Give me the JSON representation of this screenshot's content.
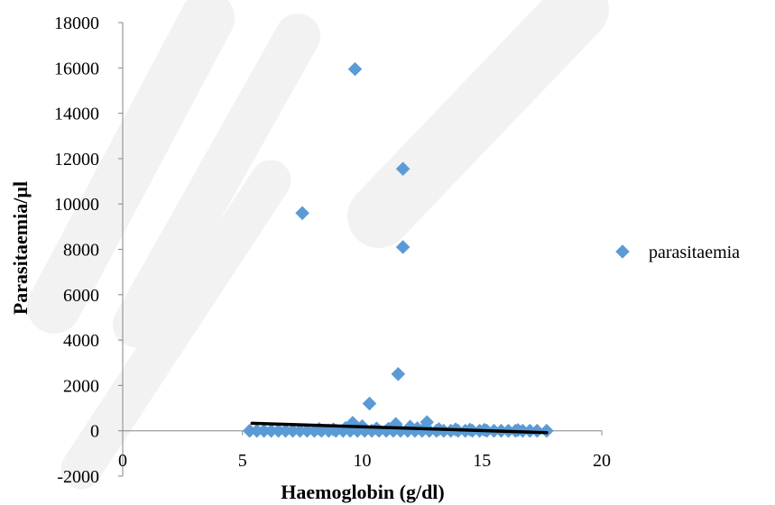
{
  "chart_data": {
    "type": "scatter",
    "title": "",
    "xlabel": "Haemoglobin (g/dl)",
    "ylabel": "Parasitaemia/µl",
    "xlim": [
      0,
      20
    ],
    "ylim": [
      -2000,
      18000
    ],
    "x_ticks": [
      "0",
      "5",
      "10",
      "15",
      "20"
    ],
    "y_ticks": [
      "-2000",
      "0",
      "2000",
      "4000",
      "6000",
      "8000",
      "10000",
      "12000",
      "14000",
      "16000",
      "18000"
    ],
    "grid": false,
    "legend_position": "right",
    "series": [
      {
        "name": "parasitaemia",
        "marker": "diamond",
        "color": "#5B9BD5",
        "points": [
          [
            9.7,
            15950
          ],
          [
            11.7,
            11550
          ],
          [
            7.5,
            9600
          ],
          [
            11.7,
            8100
          ],
          [
            11.5,
            2500
          ],
          [
            10.3,
            1200
          ],
          [
            9.6,
            350
          ],
          [
            11.4,
            300
          ],
          [
            12.7,
            380
          ],
          [
            10.0,
            200
          ],
          [
            12.0,
            180
          ],
          [
            5.3,
            0
          ],
          [
            5.6,
            0
          ],
          [
            5.9,
            0
          ],
          [
            6.2,
            0
          ],
          [
            6.5,
            0
          ],
          [
            6.8,
            0
          ],
          [
            7.1,
            0
          ],
          [
            7.4,
            0
          ],
          [
            7.7,
            0
          ],
          [
            8.0,
            0
          ],
          [
            8.3,
            0
          ],
          [
            8.6,
            0
          ],
          [
            8.9,
            0
          ],
          [
            9.2,
            0
          ],
          [
            9.5,
            0
          ],
          [
            9.8,
            0
          ],
          [
            10.1,
            0
          ],
          [
            10.4,
            0
          ],
          [
            10.7,
            0
          ],
          [
            11.0,
            0
          ],
          [
            11.3,
            0
          ],
          [
            11.6,
            0
          ],
          [
            11.9,
            0
          ],
          [
            12.2,
            0
          ],
          [
            12.5,
            0
          ],
          [
            12.8,
            0
          ],
          [
            13.1,
            0
          ],
          [
            13.4,
            0
          ],
          [
            13.7,
            0
          ],
          [
            14.0,
            0
          ],
          [
            14.3,
            0
          ],
          [
            14.6,
            0
          ],
          [
            14.9,
            0
          ],
          [
            15.2,
            0
          ],
          [
            15.5,
            0
          ],
          [
            15.8,
            0
          ],
          [
            16.1,
            0
          ],
          [
            16.4,
            0
          ],
          [
            16.7,
            0
          ],
          [
            17.0,
            0
          ],
          [
            17.3,
            0
          ],
          [
            17.7,
            0
          ],
          [
            8.2,
            80
          ],
          [
            8.8,
            60
          ],
          [
            9.3,
            120
          ],
          [
            10.6,
            100
          ],
          [
            11.1,
            90
          ],
          [
            12.3,
            110
          ],
          [
            13.2,
            70
          ],
          [
            13.9,
            60
          ],
          [
            14.5,
            50
          ],
          [
            15.1,
            40
          ],
          [
            16.5,
            30
          ]
        ]
      }
    ],
    "trendline": {
      "type": "linear",
      "color": "#000000",
      "points": [
        [
          5.4,
          330
        ],
        [
          17.7,
          -80
        ]
      ]
    }
  }
}
